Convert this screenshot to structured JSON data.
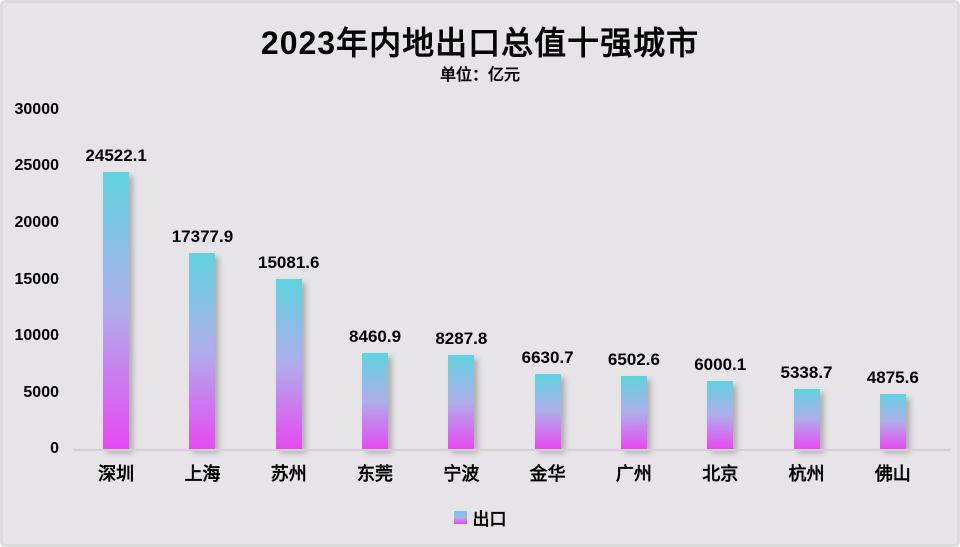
{
  "title": "2023年内地出口总值十强城市",
  "subtitle": "单位：亿元",
  "legend": {
    "label": "出口"
  },
  "colors": {
    "background": "#e6e4e6",
    "border": "#dcdbdc",
    "text": "#000000",
    "axis_line": "#d2d0d2",
    "bar_gradient_top": "#5fd3de",
    "bar_gradient_mid": "#afaeeb",
    "bar_gradient_bottom": "#e748f3"
  },
  "chart_data": {
    "type": "bar",
    "title": "2023年内地出口总值十强城市",
    "subtitle": "单位：亿元",
    "unit": "亿元",
    "categories": [
      "深圳",
      "上海",
      "苏州",
      "东莞",
      "宁波",
      "金华",
      "广州",
      "北京",
      "杭州",
      "佛山"
    ],
    "series": [
      {
        "name": "出口",
        "values": [
          24522.1,
          17377.9,
          15081.6,
          8460.9,
          8287.8,
          6630.7,
          6502.6,
          6000.1,
          5338.7,
          4875.6
        ]
      }
    ],
    "data_labels": [
      "24522.1",
      "17377.9",
      "15081.6",
      "8460.9",
      "8287.8",
      "6630.7",
      "6502.6",
      "6000.1",
      "5338.7",
      "4875.6"
    ],
    "xlabel": "",
    "ylabel": "",
    "ylim": [
      0,
      30000
    ],
    "yticks": [
      30000,
      25000,
      20000,
      15000,
      10000,
      5000,
      0
    ],
    "grid": false,
    "legend_position": "bottom"
  }
}
